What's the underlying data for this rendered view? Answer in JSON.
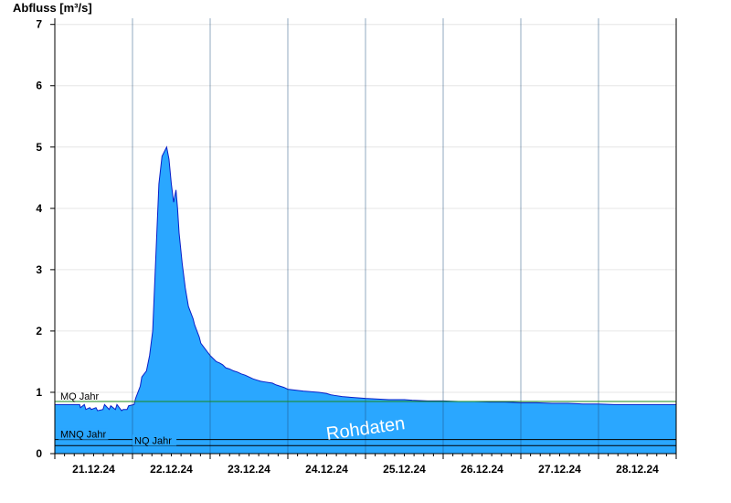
{
  "chart_data": {
    "type": "area",
    "title": "",
    "ylabel": "Abfluss [m³/s]",
    "xlabel": "",
    "ylim": [
      0,
      7.1
    ],
    "yticks": [
      0,
      1,
      2,
      3,
      4,
      5,
      6,
      7
    ],
    "xlim": [
      0,
      8
    ],
    "xtick_labels": [
      "21.12.24",
      "22.12.24",
      "23.12.24",
      "24.12.24",
      "25.12.24",
      "26.12.24",
      "27.12.24",
      "28.12.24"
    ],
    "grid": true,
    "watermark": "Rohdaten",
    "colors": {
      "fill": "#2aa7ff",
      "line": "#0a1fc8",
      "mq_line": "#1a8a1a",
      "ref_line": "#000000"
    },
    "reference_lines": [
      {
        "label": "MQ Jahr",
        "value": 0.85
      },
      {
        "label": "MNQ Jahr",
        "value": 0.23
      },
      {
        "label": "NQ Jahr",
        "value": 0.13
      }
    ],
    "series": [
      {
        "x": [
          0,
          0.32,
          0.33,
          0.38,
          0.4,
          0.45,
          0.47,
          0.53,
          0.55,
          0.62,
          0.64,
          0.7,
          0.72,
          0.78,
          0.8,
          0.86,
          0.88,
          0.93,
          0.95,
          1.02,
          1.04,
          1.1,
          1.12,
          1.18,
          1.22,
          1.26,
          1.3,
          1.34,
          1.38,
          1.42,
          1.44,
          1.47,
          1.5,
          1.53,
          1.56,
          1.58,
          1.6,
          1.64,
          1.68,
          1.72,
          1.75,
          1.78,
          1.8,
          1.83,
          1.86,
          1.88,
          1.91,
          1.94,
          1.97,
          2.0,
          2.04,
          2.08,
          2.12,
          2.16,
          2.2,
          2.25,
          2.3,
          2.35,
          2.4,
          2.45,
          2.5,
          2.55,
          2.6,
          2.65,
          2.7,
          2.75,
          2.8,
          2.85,
          2.9,
          2.95,
          3.0,
          3.2,
          3.4,
          3.5,
          3.55,
          3.6,
          3.7,
          3.8,
          3.9,
          4.0,
          4.3,
          4.5,
          4.6,
          4.8,
          5.0,
          5.2,
          5.4,
          5.6,
          5.8,
          6.0,
          6.2,
          6.4,
          6.6,
          6.8,
          7.0,
          7.2,
          7.4,
          7.6,
          7.8,
          8.0
        ],
        "y": [
          0.8,
          0.8,
          0.75,
          0.8,
          0.72,
          0.75,
          0.72,
          0.75,
          0.7,
          0.72,
          0.8,
          0.72,
          0.78,
          0.72,
          0.8,
          0.7,
          0.72,
          0.72,
          0.78,
          0.8,
          0.9,
          1.1,
          1.25,
          1.35,
          1.6,
          2.0,
          3.2,
          4.4,
          4.85,
          4.95,
          5.0,
          4.8,
          4.4,
          4.1,
          4.3,
          4.0,
          3.6,
          3.1,
          2.7,
          2.4,
          2.3,
          2.2,
          2.1,
          2.0,
          1.9,
          1.8,
          1.75,
          1.7,
          1.65,
          1.6,
          1.55,
          1.5,
          1.48,
          1.45,
          1.4,
          1.38,
          1.35,
          1.33,
          1.3,
          1.28,
          1.25,
          1.22,
          1.2,
          1.18,
          1.17,
          1.16,
          1.15,
          1.12,
          1.1,
          1.08,
          1.05,
          1.02,
          1.0,
          0.98,
          0.96,
          0.95,
          0.93,
          0.92,
          0.91,
          0.9,
          0.88,
          0.88,
          0.87,
          0.86,
          0.86,
          0.85,
          0.85,
          0.84,
          0.84,
          0.83,
          0.83,
          0.82,
          0.82,
          0.81,
          0.81,
          0.8,
          0.8,
          0.8,
          0.8,
          0.8
        ]
      }
    ]
  }
}
